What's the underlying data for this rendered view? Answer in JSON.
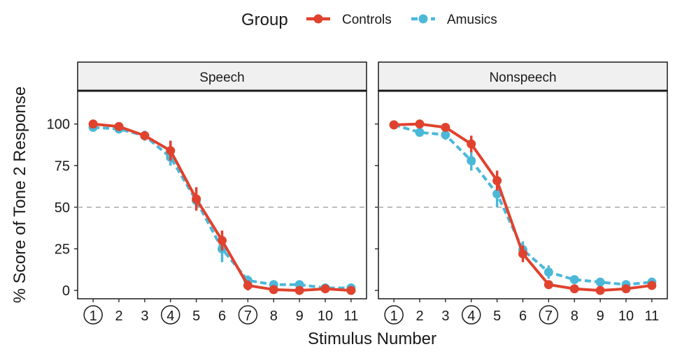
{
  "legend": {
    "title": "Group",
    "entries": [
      {
        "label": "Controls",
        "color": "#E0422E",
        "style": "solid"
      },
      {
        "label": "Amusics",
        "color": "#4BB8D8",
        "style": "dashed"
      }
    ]
  },
  "chart_data": {
    "type": "line",
    "ylabel": "% Score of Tone 2 Response",
    "xlabel": "Stimulus Number",
    "ylim": [
      -5,
      120
    ],
    "xlim": [
      0.4,
      11.6
    ],
    "yticks": [
      "0",
      "25",
      "50",
      "75",
      "100"
    ],
    "ytick_values": [
      0,
      25,
      50,
      75,
      100
    ],
    "xticks": [
      "1",
      "2",
      "3",
      "4",
      "5",
      "6",
      "7",
      "8",
      "9",
      "10",
      "11"
    ],
    "circled_xticks": [
      1,
      4,
      7
    ],
    "reference_line": 50,
    "grid": false,
    "panels": [
      {
        "name": "Speech",
        "series": [
          {
            "name": "Controls",
            "x": [
              1,
              2,
              3,
              4,
              5,
              6,
              7,
              8,
              9,
              10,
              11
            ],
            "values": [
              100,
              98.5,
              93,
              84,
              55,
              30,
              3,
              0.5,
              0,
              1,
              0
            ],
            "err": [
              1,
              1,
              2,
              6,
              7,
              6,
              3,
              1,
              1,
              1,
              1
            ]
          },
          {
            "name": "Amusics",
            "x": [
              1,
              2,
              3,
              4,
              5,
              6,
              7,
              8,
              9,
              10,
              11
            ],
            "values": [
              98,
              97,
              93,
              80,
              54,
              25,
              6,
              3.5,
              3.5,
              1.5,
              1.5
            ],
            "err": [
              2,
              2,
              3,
              5,
              6,
              8,
              3,
              2,
              2,
              1,
              1
            ]
          }
        ]
      },
      {
        "name": "Nonspeech",
        "series": [
          {
            "name": "Controls",
            "x": [
              1,
              2,
              3,
              4,
              5,
              6,
              7,
              8,
              9,
              10,
              11
            ],
            "values": [
              99.5,
              100,
              98,
              88,
              66,
              22,
              3.5,
              1,
              0,
              1,
              3
            ],
            "err": [
              1,
              1,
              2,
              5,
              6,
              5,
              2,
              1,
              1,
              1,
              1
            ]
          },
          {
            "name": "Amusics",
            "x": [
              1,
              2,
              3,
              4,
              5,
              6,
              7,
              8,
              9,
              10,
              11
            ],
            "values": [
              99.5,
              95,
              93.5,
              78,
              58,
              24.5,
              11,
              6.5,
              5,
              3.5,
              5
            ],
            "err": [
              1,
              2,
              3,
              6,
              8,
              5,
              4,
              2,
              2,
              1,
              2
            ]
          }
        ]
      }
    ]
  }
}
